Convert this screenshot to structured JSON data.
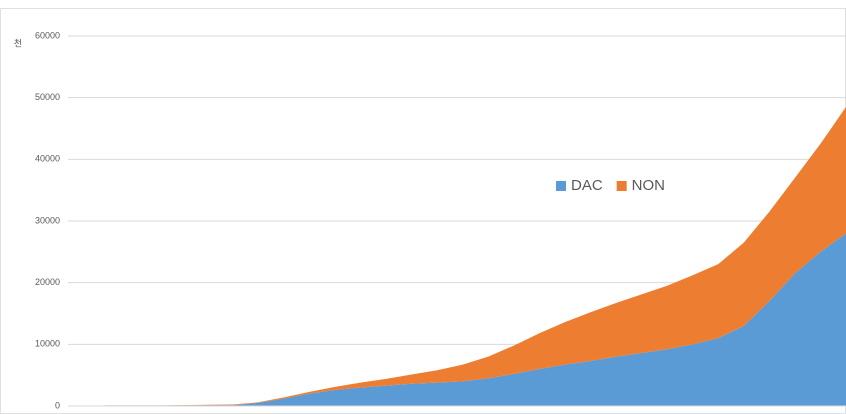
{
  "chart_data": {
    "type": "stacked_area",
    "y_unit_label": "천",
    "series": [
      {
        "name": "DAC",
        "color": "#5b9bd5",
        "values": [
          100,
          100,
          100,
          100,
          150,
          150,
          500,
          1200,
          2000,
          2600,
          3000,
          3300,
          3600,
          3800,
          4000,
          4500,
          5200,
          6000,
          6700,
          7300,
          8000,
          8600,
          9200,
          10000,
          11000,
          13000,
          17000,
          21500,
          25000,
          28000
        ]
      },
      {
        "name": "NON",
        "color": "#ed7d31",
        "values": [
          0,
          0,
          0,
          50,
          50,
          100,
          100,
          200,
          300,
          500,
          800,
          1100,
          1500,
          2000,
          2700,
          3500,
          4600,
          5800,
          6900,
          7900,
          8700,
          9500,
          10300,
          11200,
          12000,
          13500,
          14500,
          15500,
          17500,
          20500
        ]
      }
    ],
    "ylim": [
      0,
      60000
    ],
    "yticks": [
      0,
      10000,
      20000,
      30000,
      40000,
      50000,
      60000
    ],
    "grid": true,
    "legend": "center"
  }
}
